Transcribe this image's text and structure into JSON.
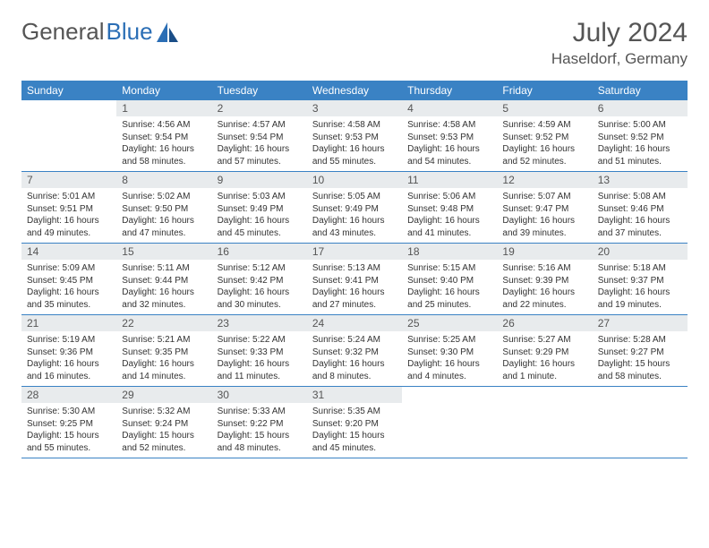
{
  "logo": {
    "part1": "General",
    "part2": "Blue"
  },
  "title": "July 2024",
  "location": "Haseldorf, Germany",
  "weekdays": [
    "Sunday",
    "Monday",
    "Tuesday",
    "Wednesday",
    "Thursday",
    "Friday",
    "Saturday"
  ],
  "colors": {
    "header_bar": "#3a82c4",
    "daynum_bg": "#e8ebed",
    "text": "#333333",
    "accent": "#2b6eb5"
  },
  "weeks": [
    [
      {
        "n": "",
        "sr": "",
        "ss": "",
        "dl": ""
      },
      {
        "n": "1",
        "sr": "Sunrise: 4:56 AM",
        "ss": "Sunset: 9:54 PM",
        "dl": "Daylight: 16 hours and 58 minutes."
      },
      {
        "n": "2",
        "sr": "Sunrise: 4:57 AM",
        "ss": "Sunset: 9:54 PM",
        "dl": "Daylight: 16 hours and 57 minutes."
      },
      {
        "n": "3",
        "sr": "Sunrise: 4:58 AM",
        "ss": "Sunset: 9:53 PM",
        "dl": "Daylight: 16 hours and 55 minutes."
      },
      {
        "n": "4",
        "sr": "Sunrise: 4:58 AM",
        "ss": "Sunset: 9:53 PM",
        "dl": "Daylight: 16 hours and 54 minutes."
      },
      {
        "n": "5",
        "sr": "Sunrise: 4:59 AM",
        "ss": "Sunset: 9:52 PM",
        "dl": "Daylight: 16 hours and 52 minutes."
      },
      {
        "n": "6",
        "sr": "Sunrise: 5:00 AM",
        "ss": "Sunset: 9:52 PM",
        "dl": "Daylight: 16 hours and 51 minutes."
      }
    ],
    [
      {
        "n": "7",
        "sr": "Sunrise: 5:01 AM",
        "ss": "Sunset: 9:51 PM",
        "dl": "Daylight: 16 hours and 49 minutes."
      },
      {
        "n": "8",
        "sr": "Sunrise: 5:02 AM",
        "ss": "Sunset: 9:50 PM",
        "dl": "Daylight: 16 hours and 47 minutes."
      },
      {
        "n": "9",
        "sr": "Sunrise: 5:03 AM",
        "ss": "Sunset: 9:49 PM",
        "dl": "Daylight: 16 hours and 45 minutes."
      },
      {
        "n": "10",
        "sr": "Sunrise: 5:05 AM",
        "ss": "Sunset: 9:49 PM",
        "dl": "Daylight: 16 hours and 43 minutes."
      },
      {
        "n": "11",
        "sr": "Sunrise: 5:06 AM",
        "ss": "Sunset: 9:48 PM",
        "dl": "Daylight: 16 hours and 41 minutes."
      },
      {
        "n": "12",
        "sr": "Sunrise: 5:07 AM",
        "ss": "Sunset: 9:47 PM",
        "dl": "Daylight: 16 hours and 39 minutes."
      },
      {
        "n": "13",
        "sr": "Sunrise: 5:08 AM",
        "ss": "Sunset: 9:46 PM",
        "dl": "Daylight: 16 hours and 37 minutes."
      }
    ],
    [
      {
        "n": "14",
        "sr": "Sunrise: 5:09 AM",
        "ss": "Sunset: 9:45 PM",
        "dl": "Daylight: 16 hours and 35 minutes."
      },
      {
        "n": "15",
        "sr": "Sunrise: 5:11 AM",
        "ss": "Sunset: 9:44 PM",
        "dl": "Daylight: 16 hours and 32 minutes."
      },
      {
        "n": "16",
        "sr": "Sunrise: 5:12 AM",
        "ss": "Sunset: 9:42 PM",
        "dl": "Daylight: 16 hours and 30 minutes."
      },
      {
        "n": "17",
        "sr": "Sunrise: 5:13 AM",
        "ss": "Sunset: 9:41 PM",
        "dl": "Daylight: 16 hours and 27 minutes."
      },
      {
        "n": "18",
        "sr": "Sunrise: 5:15 AM",
        "ss": "Sunset: 9:40 PM",
        "dl": "Daylight: 16 hours and 25 minutes."
      },
      {
        "n": "19",
        "sr": "Sunrise: 5:16 AM",
        "ss": "Sunset: 9:39 PM",
        "dl": "Daylight: 16 hours and 22 minutes."
      },
      {
        "n": "20",
        "sr": "Sunrise: 5:18 AM",
        "ss": "Sunset: 9:37 PM",
        "dl": "Daylight: 16 hours and 19 minutes."
      }
    ],
    [
      {
        "n": "21",
        "sr": "Sunrise: 5:19 AM",
        "ss": "Sunset: 9:36 PM",
        "dl": "Daylight: 16 hours and 16 minutes."
      },
      {
        "n": "22",
        "sr": "Sunrise: 5:21 AM",
        "ss": "Sunset: 9:35 PM",
        "dl": "Daylight: 16 hours and 14 minutes."
      },
      {
        "n": "23",
        "sr": "Sunrise: 5:22 AM",
        "ss": "Sunset: 9:33 PM",
        "dl": "Daylight: 16 hours and 11 minutes."
      },
      {
        "n": "24",
        "sr": "Sunrise: 5:24 AM",
        "ss": "Sunset: 9:32 PM",
        "dl": "Daylight: 16 hours and 8 minutes."
      },
      {
        "n": "25",
        "sr": "Sunrise: 5:25 AM",
        "ss": "Sunset: 9:30 PM",
        "dl": "Daylight: 16 hours and 4 minutes."
      },
      {
        "n": "26",
        "sr": "Sunrise: 5:27 AM",
        "ss": "Sunset: 9:29 PM",
        "dl": "Daylight: 16 hours and 1 minute."
      },
      {
        "n": "27",
        "sr": "Sunrise: 5:28 AM",
        "ss": "Sunset: 9:27 PM",
        "dl": "Daylight: 15 hours and 58 minutes."
      }
    ],
    [
      {
        "n": "28",
        "sr": "Sunrise: 5:30 AM",
        "ss": "Sunset: 9:25 PM",
        "dl": "Daylight: 15 hours and 55 minutes."
      },
      {
        "n": "29",
        "sr": "Sunrise: 5:32 AM",
        "ss": "Sunset: 9:24 PM",
        "dl": "Daylight: 15 hours and 52 minutes."
      },
      {
        "n": "30",
        "sr": "Sunrise: 5:33 AM",
        "ss": "Sunset: 9:22 PM",
        "dl": "Daylight: 15 hours and 48 minutes."
      },
      {
        "n": "31",
        "sr": "Sunrise: 5:35 AM",
        "ss": "Sunset: 9:20 PM",
        "dl": "Daylight: 15 hours and 45 minutes."
      },
      {
        "n": "",
        "sr": "",
        "ss": "",
        "dl": ""
      },
      {
        "n": "",
        "sr": "",
        "ss": "",
        "dl": ""
      },
      {
        "n": "",
        "sr": "",
        "ss": "",
        "dl": ""
      }
    ]
  ]
}
